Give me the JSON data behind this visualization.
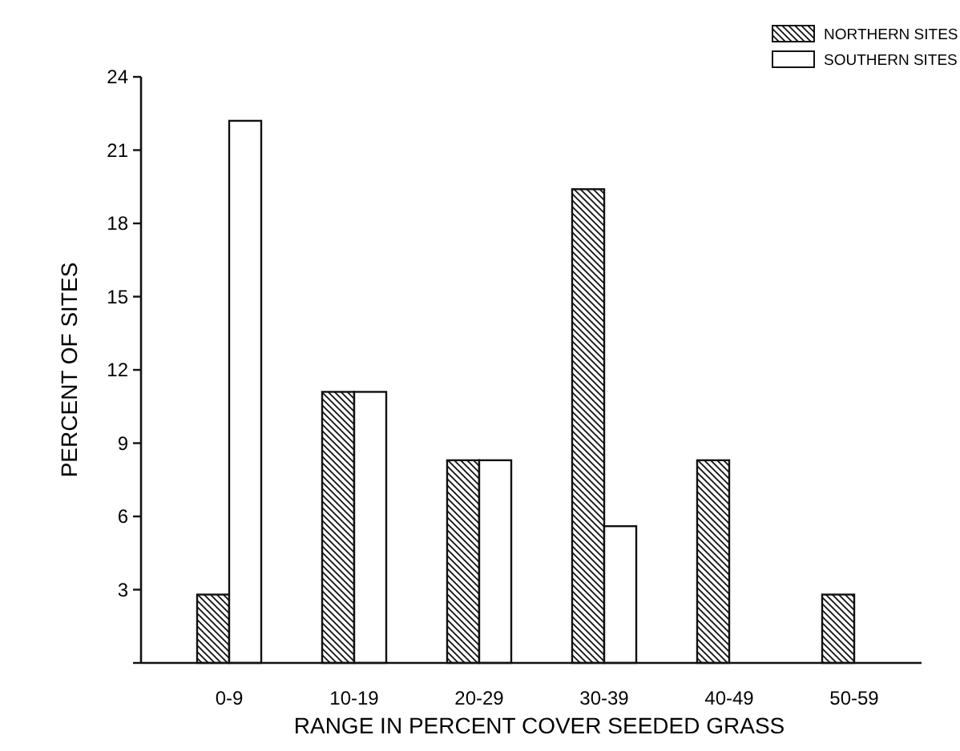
{
  "chart_data": {
    "type": "bar",
    "xlabel": "RANGE IN PERCENT COVER SEEDED GRASS",
    "ylabel": "PERCENT OF SITES",
    "categories": [
      "0-9",
      "10-19",
      "20-29",
      "30-39",
      "40-49",
      "50-59"
    ],
    "series": [
      {
        "name": "NORTHERN SITES",
        "color": "#111111",
        "values": [
          2.8,
          11.1,
          8.3,
          19.4,
          8.3,
          2.8
        ]
      },
      {
        "name": "SOUTHERN SITES",
        "color": "#ffffff",
        "values": [
          22.2,
          11.1,
          8.3,
          5.6,
          null,
          null
        ]
      }
    ],
    "ylim": [
      0,
      24
    ],
    "yticks": [
      {
        "value": 0,
        "label": null
      },
      3,
      6,
      9,
      12,
      15,
      18,
      21,
      24
    ],
    "grid": false,
    "legend": "top right"
  }
}
